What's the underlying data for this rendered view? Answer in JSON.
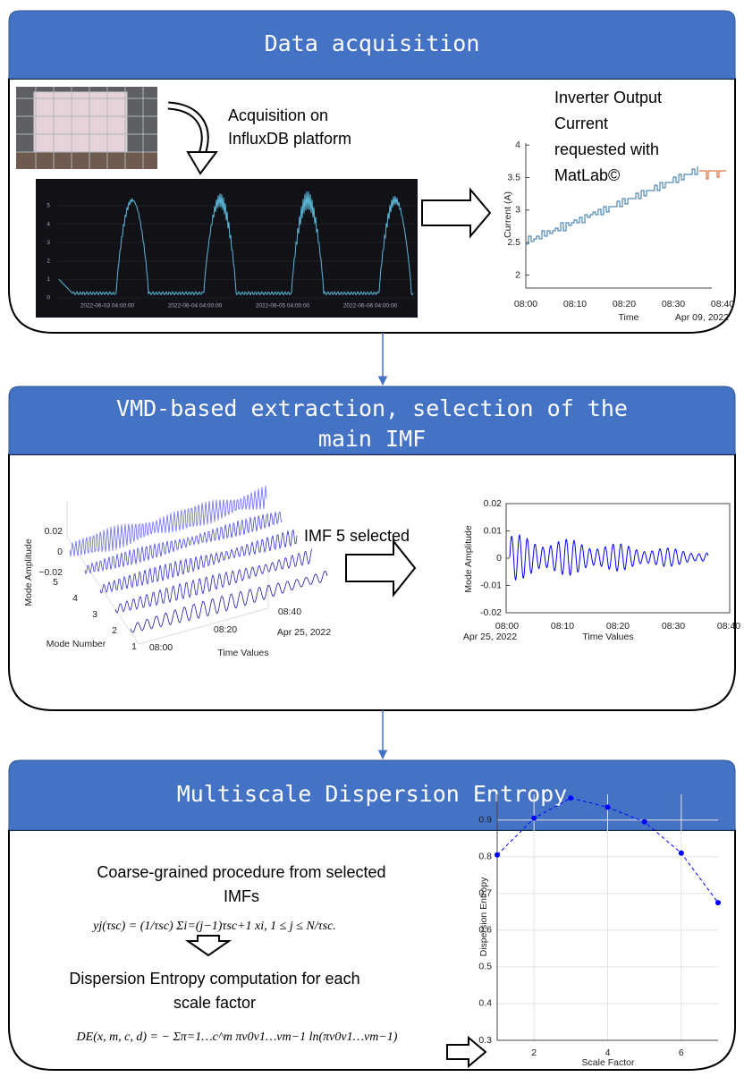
{
  "acquisition": {
    "title": "Data acquisition",
    "caption": [
      "Acquisition on",
      "InfluxDB platform"
    ],
    "influx_chart": {
      "ylim": [
        0,
        5
      ],
      "yticks": [
        0,
        1,
        2,
        3,
        4,
        5
      ],
      "xticks": [
        "2022-06-03 04:00:00",
        "2022-06-04 04:00:00",
        "2022-06-05 04:00:00",
        "2022-06-06 04:00:00"
      ]
    },
    "matlab_label": [
      "Inverter Output",
      "Current",
      "requested with",
      "MatLab©"
    ],
    "matlab_chart": {
      "ylabel": "Current (A)",
      "ylim": [
        1.8,
        4.03
      ],
      "yticks": [
        2,
        2.5,
        3,
        3.5,
        4
      ],
      "xticks": [
        "08:00",
        "08:10",
        "08:20",
        "08:30",
        "08:40"
      ],
      "xlabel": "Time",
      "date": "Apr 09, 2022"
    }
  },
  "extraction": {
    "title": [
      "VMD-based extraction, selection of the",
      "main IMF"
    ],
    "mode_plot": {
      "zlabel": "Mode Amplitude",
      "zticks": [
        0.02,
        0,
        {
          "value": -0.02,
          "label": "−0.02"
        }
      ],
      "ylabel": "Mode Number",
      "yticks": [
        1,
        2,
        3,
        4,
        5
      ],
      "xticks": [
        "08:00",
        "08:20",
        "08:40"
      ],
      "date": "Apr 25, 2022",
      "xlabel": "Time Values"
    },
    "caption": "IMF 5 selected",
    "imf_chart": {
      "ylabel": "Mode Amplitude",
      "ylim": [
        -0.02,
        0.02
      ],
      "yticks": [
        0.02,
        0.01,
        0,
        -0.01,
        -0.02
      ],
      "xticks": [
        "08:00",
        "08:10",
        "08:20",
        "08:30",
        "08:40"
      ],
      "date": "Apr 25, 2022",
      "xlabel": "Time Values"
    }
  },
  "entropy": {
    "title": "Multiscale Dispersion Entropy",
    "step1": [
      "Coarse-grained procedure from selected",
      "IMFs"
    ],
    "formula1": "yj(τsc) = (1/τsc) Σi=(j−1)τsc+1 xi, 1 ≤ j ≤ N/τsc.",
    "step2": [
      "Dispersion Entropy computation for each",
      "scale factor"
    ],
    "formula2": "DE(x, m, c, d) = − Σπ=1…c^m πν0ν1…νm−1 ln(πν0ν1…νm−1)",
    "chart": {
      "ylabel": "Dispersion Entropy",
      "xlabel": "Scale Factor",
      "x": [
        1,
        2,
        3,
        4,
        5,
        6,
        7
      ],
      "values": [
        0.805,
        0.905,
        0.96,
        0.935,
        0.895,
        0.81,
        0.675
      ],
      "xlim": [
        1,
        7
      ],
      "ylim": [
        0.3,
        0.97
      ],
      "xticks": [
        2,
        4,
        6
      ],
      "yticks": [
        0.3,
        0.4,
        0.5,
        0.6,
        0.7,
        0.8,
        0.9
      ],
      "color": "#0000ff",
      "grid": true
    }
  }
}
